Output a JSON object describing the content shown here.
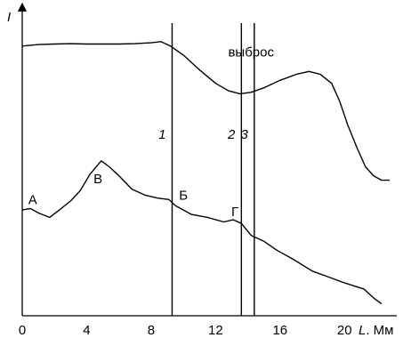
{
  "chart_data": {
    "type": "line",
    "title": "",
    "xlabel": "L, мм",
    "ylabel": "I",
    "xlim": [
      0,
      22.8
    ],
    "ylim": [
      0,
      1
    ],
    "xticks": [
      0,
      4,
      8,
      12,
      16,
      20
    ],
    "x_axis_title_parts": {
      "letter": "L",
      "unit": ". Мм"
    },
    "grid": false,
    "series": [
      {
        "points": [
          [
            0,
            0.905
          ],
          [
            1,
            0.91
          ],
          [
            2,
            0.912
          ],
          [
            3,
            0.913
          ],
          [
            4,
            0.912
          ],
          [
            5,
            0.912
          ],
          [
            6,
            0.912
          ],
          [
            7,
            0.913
          ],
          [
            8,
            0.916
          ],
          [
            8.6,
            0.92
          ],
          [
            9.2,
            0.905
          ],
          [
            10,
            0.875
          ],
          [
            11,
            0.825
          ],
          [
            12,
            0.78
          ],
          [
            12.8,
            0.755
          ],
          [
            13.5,
            0.745
          ],
          [
            14.2,
            0.75
          ],
          [
            15,
            0.765
          ],
          [
            16,
            0.79
          ],
          [
            17,
            0.81
          ],
          [
            17.8,
            0.82
          ],
          [
            18.5,
            0.81
          ],
          [
            19.2,
            0.78
          ],
          [
            19.7,
            0.72
          ],
          [
            20.2,
            0.64
          ],
          [
            20.8,
            0.56
          ],
          [
            21.3,
            0.5
          ],
          [
            21.8,
            0.47
          ],
          [
            22.3,
            0.455
          ],
          [
            22.8,
            0.455
          ]
        ]
      },
      {
        "points": [
          [
            0,
            0.355
          ],
          [
            0.5,
            0.36
          ],
          [
            1,
            0.345
          ],
          [
            1.7,
            0.33
          ],
          [
            2.3,
            0.355
          ],
          [
            3,
            0.385
          ],
          [
            3.6,
            0.42
          ],
          [
            4.2,
            0.475
          ],
          [
            4.9,
            0.52
          ],
          [
            5.4,
            0.5
          ],
          [
            6,
            0.47
          ],
          [
            6.8,
            0.425
          ],
          [
            7.6,
            0.405
          ],
          [
            8.4,
            0.395
          ],
          [
            9.1,
            0.39
          ],
          [
            9.5,
            0.37
          ],
          [
            10.5,
            0.34
          ],
          [
            11.5,
            0.33
          ],
          [
            12.5,
            0.315
          ],
          [
            13.1,
            0.322
          ],
          [
            13.6,
            0.31
          ],
          [
            14.2,
            0.27
          ],
          [
            15,
            0.25
          ],
          [
            15.8,
            0.22
          ],
          [
            16.8,
            0.19
          ],
          [
            18,
            0.15
          ],
          [
            19,
            0.13
          ],
          [
            20,
            0.11
          ],
          [
            21.2,
            0.09
          ],
          [
            21.8,
            0.06
          ],
          [
            22.3,
            0.04
          ]
        ]
      }
    ],
    "markers": [
      {
        "label": "1",
        "x": 9.3
      },
      {
        "label": "2",
        "x": 13.6
      },
      {
        "label": "3",
        "x": 14.4
      }
    ],
    "annotations": [
      {
        "text": "выброс",
        "x": 14.2,
        "y": 0.87
      },
      {
        "text": "А",
        "x": 0.65,
        "y": 0.375
      },
      {
        "text": "В",
        "x": 4.7,
        "y": 0.445
      },
      {
        "text": "Б",
        "x": 10.0,
        "y": 0.39
      },
      {
        "text": "Г",
        "x": 13.2,
        "y": 0.335
      }
    ]
  }
}
